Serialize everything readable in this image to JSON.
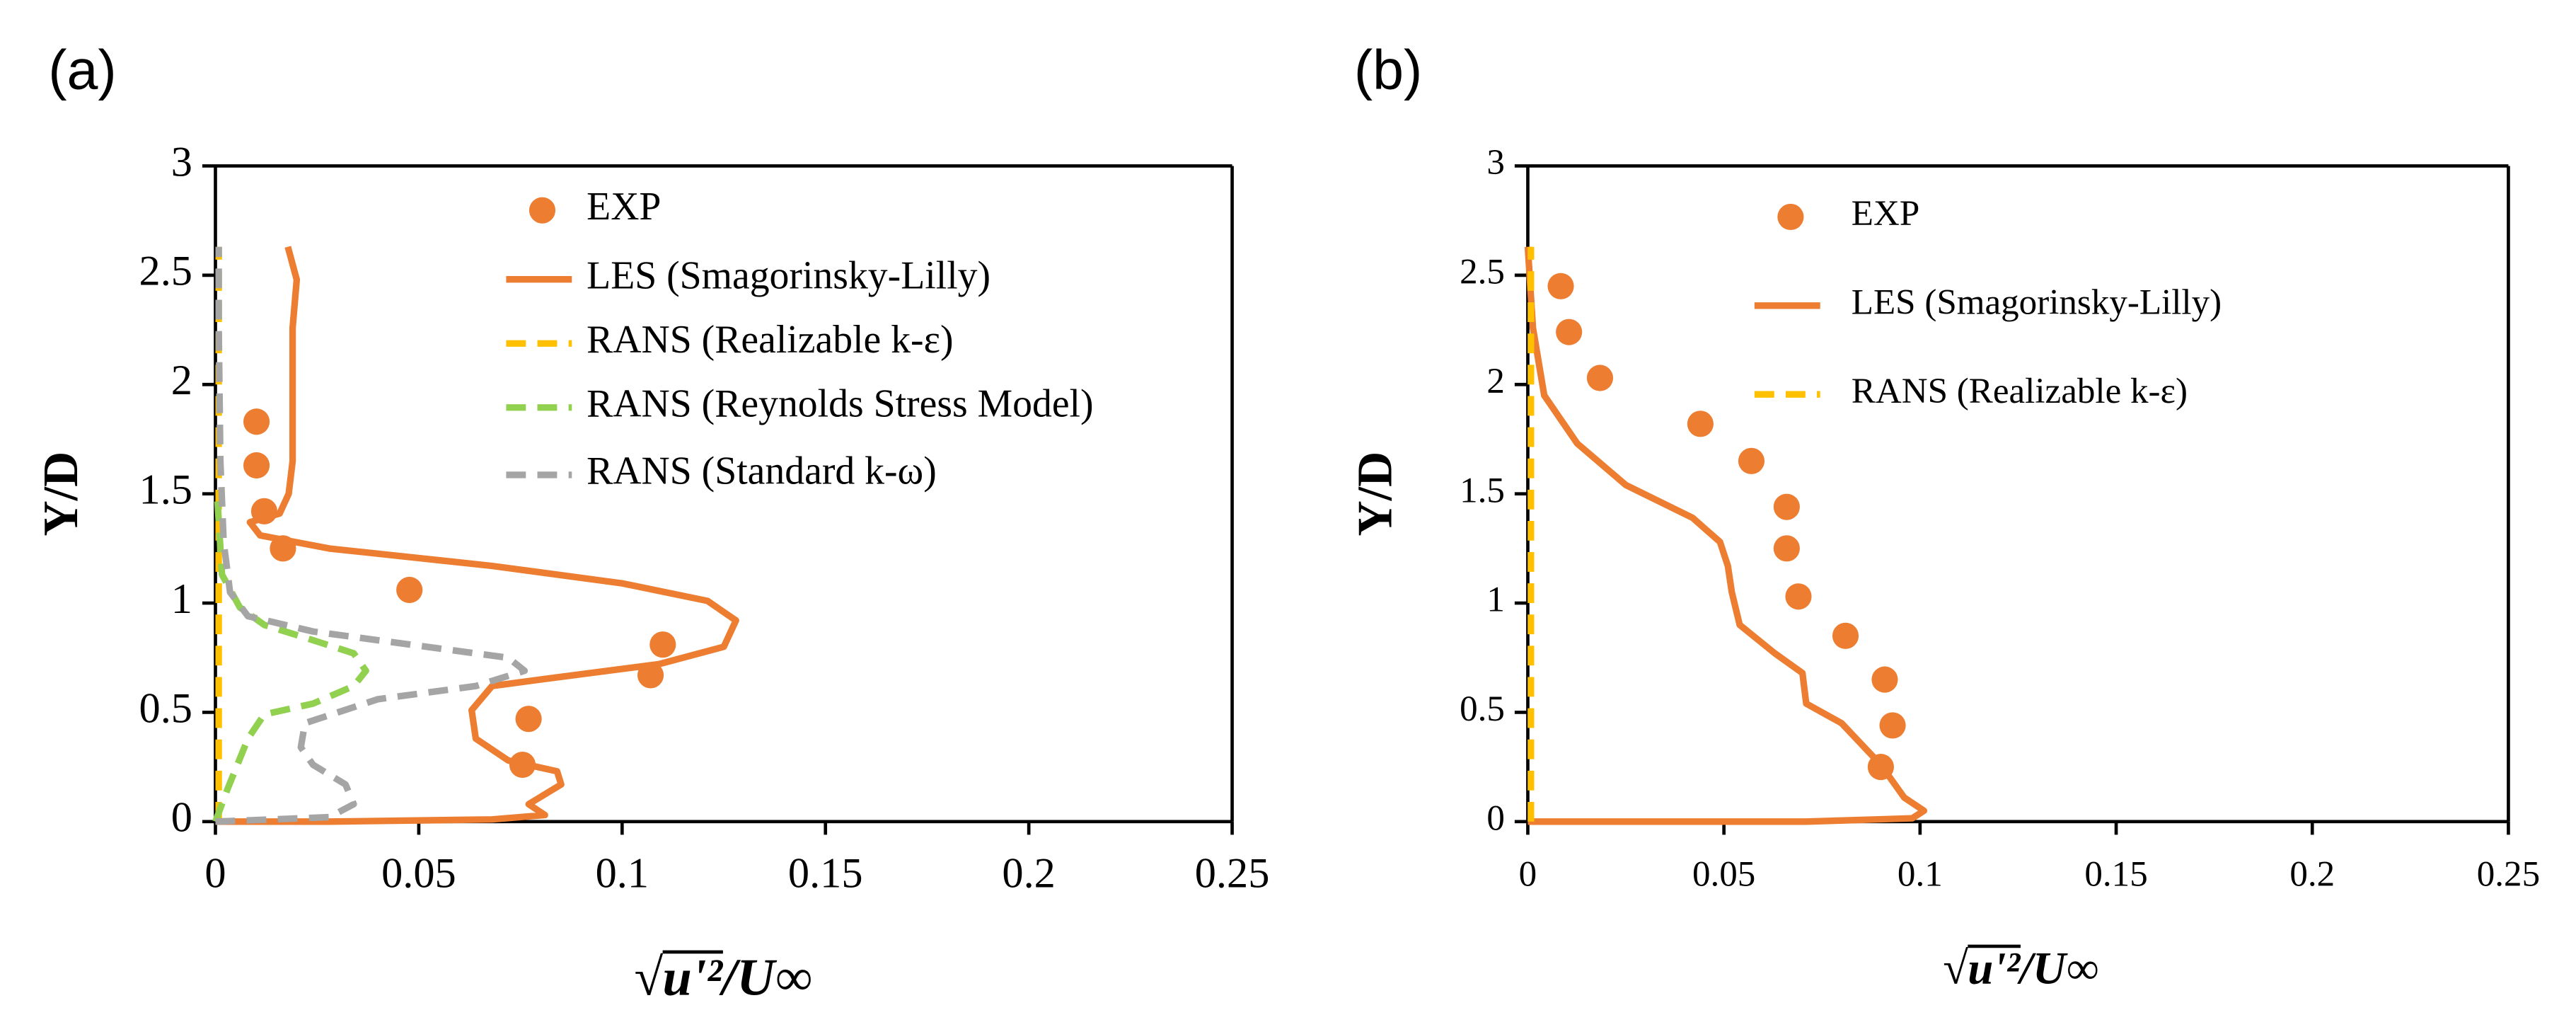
{
  "chart_data": [
    {
      "type": "line",
      "panel_label": "(a)",
      "x_label": "√u'²/U∞",
      "y_label": "Y/D",
      "xlim": [
        0,
        0.25
      ],
      "xticks": [
        0,
        0.05,
        0.1,
        0.15,
        0.2,
        0.25
      ],
      "ylim": [
        0,
        3
      ],
      "yticks": [
        0,
        0.5,
        1,
        1.5,
        2,
        2.5,
        3
      ],
      "grid": false,
      "legend": "top-right",
      "series": [
        {
          "name": "EXP",
          "color": "#ed7d31",
          "style": "markers",
          "x": [
            0.0101,
            0.0101,
            0.012,
            0.0166,
            0.0477,
            0.11,
            0.107,
            0.077,
            0.0755
          ],
          "y": [
            1.83,
            1.63,
            1.42,
            1.25,
            1.06,
            0.81,
            0.67,
            0.47,
            0.26
          ]
        },
        {
          "name": "LES (Smagorinsky-Lilly)",
          "color": "#ed7d31",
          "style": "solid",
          "x": [
            0.0178,
            0.02,
            0.019,
            0.019,
            0.019,
            0.018,
            0.0158,
            0.0085,
            0.011,
            0.028,
            0.068,
            0.1,
            0.121,
            0.128,
            0.125,
            0.109,
            0.084,
            0.068,
            0.063,
            0.064,
            0.072,
            0.084,
            0.085,
            0.077,
            0.081,
            0.068,
            0.028,
            0
          ],
          "y": [
            2.63,
            2.48,
            2.26,
            1.95,
            1.65,
            1.5,
            1.41,
            1.37,
            1.31,
            1.25,
            1.17,
            1.09,
            1.01,
            0.92,
            0.8,
            0.72,
            0.66,
            0.62,
            0.51,
            0.38,
            0.28,
            0.23,
            0.17,
            0.08,
            0.03,
            0.01,
            0,
            0
          ]
        },
        {
          "name": "RANS (Realizable k-ε)",
          "color": "#ffc000",
          "style": "dashed",
          "x": [
            0.0008,
            0.0008,
            0.0008
          ],
          "y": [
            0,
            1.3,
            2.63
          ]
        },
        {
          "name": "RANS (Reynolds Stress Model)",
          "color": "#92d050",
          "style": "dashed",
          "x": [
            0,
            0.003,
            0.008,
            0.012,
            0.024,
            0.034,
            0.037,
            0.034,
            0.024,
            0.012,
            0.006,
            0.0016,
            0.0004
          ],
          "y": [
            0,
            0.15,
            0.38,
            0.49,
            0.54,
            0.62,
            0.69,
            0.77,
            0.83,
            0.9,
            0.98,
            1.13,
            1.5
          ]
        },
        {
          "name": "RANS (Standard k-ω)",
          "color": "#a5a5a5",
          "style": "dashed",
          "x": [
            0,
            0.028,
            0.034,
            0.032,
            0.024,
            0.021,
            0.022,
            0.04,
            0.064,
            0.076,
            0.072,
            0.048,
            0.024,
            0.008,
            0.0036,
            0.002,
            0.0012,
            0.0008,
            0.0008
          ],
          "y": [
            0,
            0.02,
            0.08,
            0.17,
            0.26,
            0.34,
            0.45,
            0.56,
            0.62,
            0.69,
            0.75,
            0.81,
            0.87,
            0.94,
            1.05,
            1.28,
            1.65,
            2.26,
            2.63
          ]
        }
      ]
    },
    {
      "type": "line",
      "panel_label": "(b)",
      "x_label": "√u'²/U∞",
      "y_label": "Y/D",
      "xlim": [
        0,
        0.25
      ],
      "xticks": [
        0,
        0.05,
        0.1,
        0.15,
        0.2,
        0.25
      ],
      "ylim": [
        0,
        3
      ],
      "yticks": [
        0,
        0.5,
        1,
        1.5,
        2,
        2.5,
        3
      ],
      "grid": false,
      "legend": "top-right",
      "series": [
        {
          "name": "EXP",
          "color": "#ed7d31",
          "style": "markers",
          "x": [
            0.0084,
            0.0105,
            0.0184,
            0.044,
            0.057,
            0.066,
            0.066,
            0.069,
            0.081,
            0.091,
            0.093,
            0.09
          ],
          "y": [
            2.45,
            2.24,
            2.03,
            1.82,
            1.65,
            1.44,
            1.25,
            1.03,
            0.85,
            0.65,
            0.44,
            0.25
          ]
        },
        {
          "name": "LES (Smagorinsky-Lilly)",
          "color": "#ed7d31",
          "style": "solid",
          "x": [
            0,
            0.0013,
            0.0042,
            0.0126,
            0.025,
            0.042,
            0.049,
            0.051,
            0.052,
            0.054,
            0.063,
            0.07,
            0.071,
            0.08,
            0.09,
            0.096,
            0.101,
            0.098,
            0.071,
            0
          ],
          "y": [
            2.63,
            2.26,
            1.95,
            1.73,
            1.54,
            1.39,
            1.28,
            1.17,
            1.05,
            0.9,
            0.77,
            0.68,
            0.54,
            0.45,
            0.26,
            0.11,
            0.05,
            0.015,
            0,
            0
          ]
        },
        {
          "name": "RANS (Realizable k-ε)",
          "color": "#ffc000",
          "style": "dashed",
          "x": [
            0.0008,
            0.0008,
            0.0008
          ],
          "y": [
            0,
            1.3,
            2.63
          ]
        }
      ]
    }
  ]
}
